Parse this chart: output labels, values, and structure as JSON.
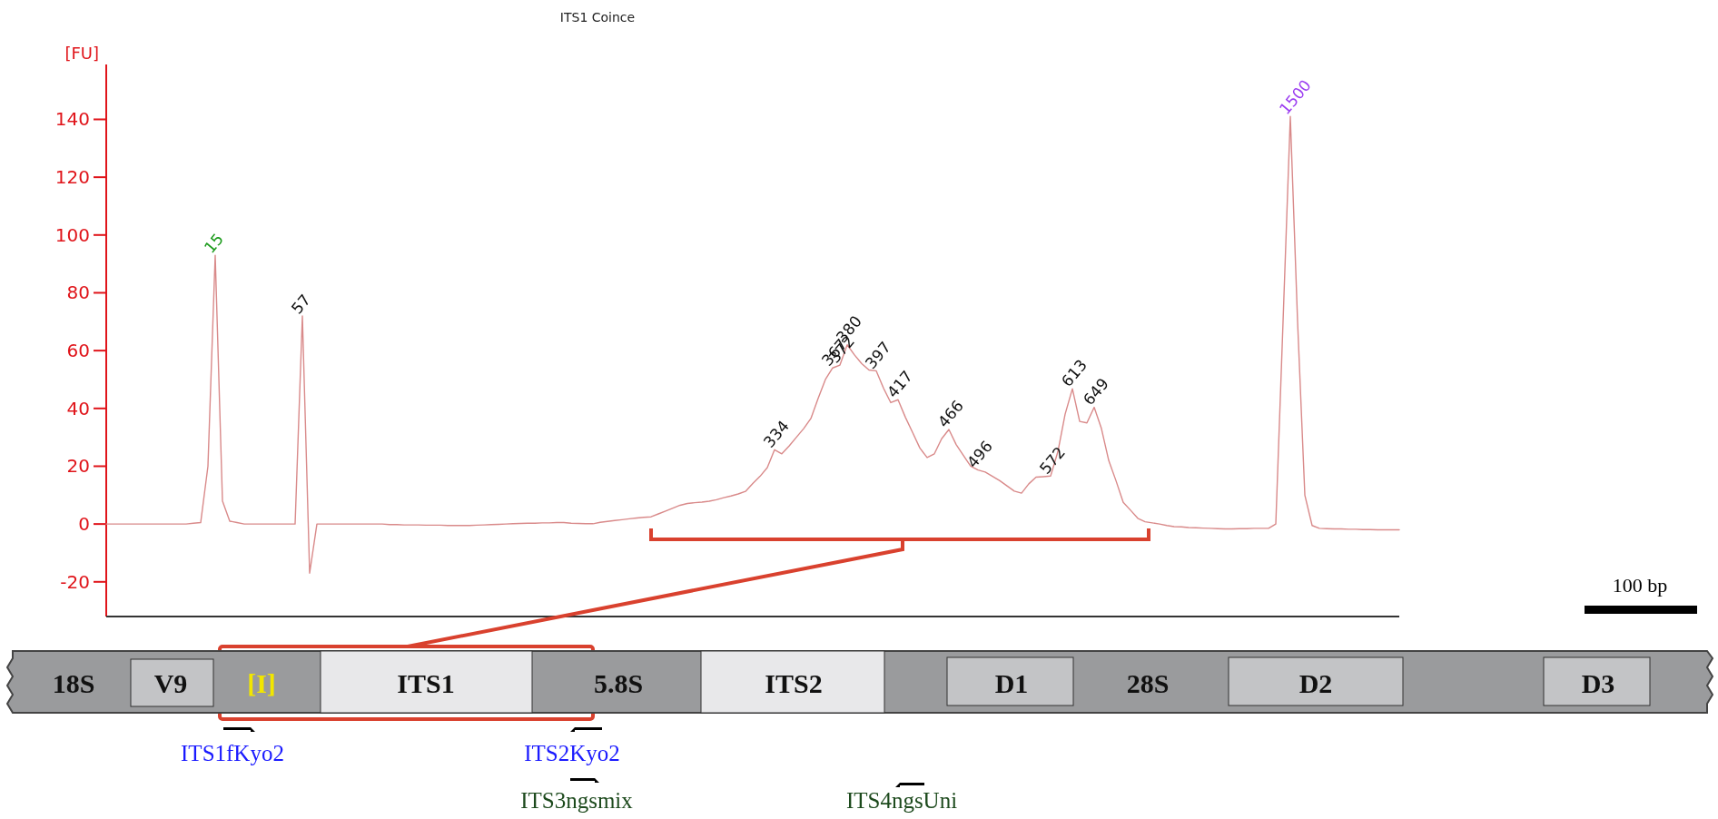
{
  "chart_data": {
    "type": "line",
    "title": "ITS1 Coince",
    "ylabel": "[FU]",
    "categories": [
      null,
      null,
      null,
      null,
      null,
      null,
      null,
      null,
      null,
      null,
      null,
      null,
      null,
      null,
      null,
      null,
      null,
      null,
      null,
      null,
      null,
      null,
      null,
      null,
      null,
      null,
      null,
      null,
      null,
      null,
      null,
      null,
      null,
      null,
      null,
      null,
      null,
      null,
      null,
      null,
      null,
      null,
      null,
      null,
      null,
      null,
      null,
      null,
      null,
      null,
      null,
      null,
      null,
      null,
      null,
      null,
      null,
      null,
      null,
      null,
      null,
      null,
      null,
      null,
      null,
      null,
      null,
      null,
      null,
      null,
      null,
      null,
      null,
      null,
      null,
      null,
      null,
      null,
      null,
      null,
      null,
      null,
      null,
      null,
      null,
      null,
      null,
      null,
      null,
      null,
      null,
      null,
      null,
      null,
      null,
      null,
      null,
      null,
      null,
      null,
      null,
      null,
      null,
      null,
      null,
      null,
      null,
      null,
      null,
      null,
      null,
      null,
      null,
      null,
      null,
      null,
      null,
      null,
      null,
      null,
      null,
      null,
      null,
      null,
      null,
      null,
      null,
      null,
      null,
      null,
      null,
      null,
      null,
      null,
      null,
      null,
      null,
      null,
      null,
      null,
      null,
      null,
      null,
      null,
      null,
      null,
      null,
      null,
      null,
      null,
      null,
      null,
      null,
      null,
      null,
      null,
      null,
      null,
      null,
      null,
      null,
      null,
      null,
      null,
      null,
      null,
      null,
      null,
      null,
      null,
      null,
      null,
      null,
      null,
      null,
      null,
      null,
      null,
      null
    ],
    "ylim": [
      -32,
      159
    ],
    "yticks": [
      -20,
      0,
      20,
      40,
      60,
      80,
      100,
      120,
      140
    ],
    "tick_labels": "y",
    "grid": false,
    "marker": "none",
    "line_style": "solid",
    "series": [
      {
        "color": "#d98a8a",
        "values": [
          0,
          0,
          0,
          0,
          0,
          0,
          0,
          0,
          0,
          0,
          0,
          0,
          0.3,
          0.5,
          20,
          93,
          8,
          1,
          0.5,
          0,
          0,
          0,
          0,
          0,
          0,
          0,
          0,
          72,
          -17,
          0,
          0,
          0,
          0,
          0,
          0,
          0,
          0,
          0,
          0,
          -0.2,
          -0.2,
          -0.3,
          -0.3,
          -0.3,
          -0.4,
          -0.4,
          -0.4,
          -0.5,
          -0.5,
          -0.5,
          -0.5,
          -0.4,
          -0.3,
          -0.2,
          -0.1,
          0,
          0.1,
          0.2,
          0.3,
          0.3,
          0.4,
          0.4,
          0.5,
          0.5,
          0.3,
          0.2,
          0.1,
          0.1,
          0.6,
          0.9,
          1.2,
          1.5,
          1.8,
          2.1,
          2.3,
          2.5,
          3.5,
          4.5,
          5.5,
          6.5,
          7.1,
          7.4,
          7.6,
          7.9,
          8.4,
          9.1,
          9.7,
          10.4,
          11.3,
          14,
          16.5,
          19.5,
          25.7,
          24.3,
          27,
          30,
          33,
          36.5,
          43.5,
          50,
          54,
          55,
          62,
          58.5,
          55.5,
          53.3,
          53,
          47,
          42,
          43,
          37,
          31.7,
          26.3,
          23,
          24.3,
          29.5,
          32.7,
          27.5,
          23.7,
          20,
          18.7,
          18,
          16.5,
          15,
          13.2,
          11.4,
          10.7,
          13.9,
          16.2,
          16.4,
          16.6,
          25,
          38,
          46.8,
          35.5,
          35,
          40.4,
          33,
          22,
          15,
          7.5,
          4.8,
          2,
          0.8,
          0.4,
          0,
          -0.5,
          -0.9,
          -1,
          -1.2,
          -1.3,
          -1.4,
          -1.5,
          -1.6,
          -1.7,
          -1.7,
          -1.6,
          -1.6,
          -1.5,
          -1.5,
          -1.5,
          0,
          70,
          141,
          70,
          10,
          -0.5,
          -1.5,
          -1.6,
          -1.7,
          -1.7,
          -1.8,
          -1.8,
          -1.9,
          -1.9,
          -2,
          -2,
          -2,
          -2
        ]
      }
    ],
    "annotations": [
      {
        "text": "15",
        "y": 93
      },
      {
        "text": "57",
        "y": 72
      },
      {
        "text": "334",
        "y": 25.7
      },
      {
        "text": "367",
        "y": 54
      },
      {
        "text": "372",
        "y": 55
      },
      {
        "text": "380",
        "y": 62
      },
      {
        "text": "397",
        "y": 53
      },
      {
        "text": "417",
        "y": 43
      },
      {
        "text": "466",
        "y": 32.7
      },
      {
        "text": "496",
        "y": 18.7
      },
      {
        "text": "572",
        "y": 16.6
      },
      {
        "text": "613",
        "y": 46.8
      },
      {
        "text": "649",
        "y": 40.4
      },
      {
        "text": "1500",
        "y": 141
      },
      "100 bp",
      "18S",
      "V9",
      "[I]",
      "ITS1",
      "5.8S",
      "ITS2",
      "D1",
      "28S",
      "D2",
      "D3",
      "ITS1fKyo2",
      "ITS2Kyo2",
      "ITS3ngsmix",
      "ITS4ngsUni"
    ]
  }
}
